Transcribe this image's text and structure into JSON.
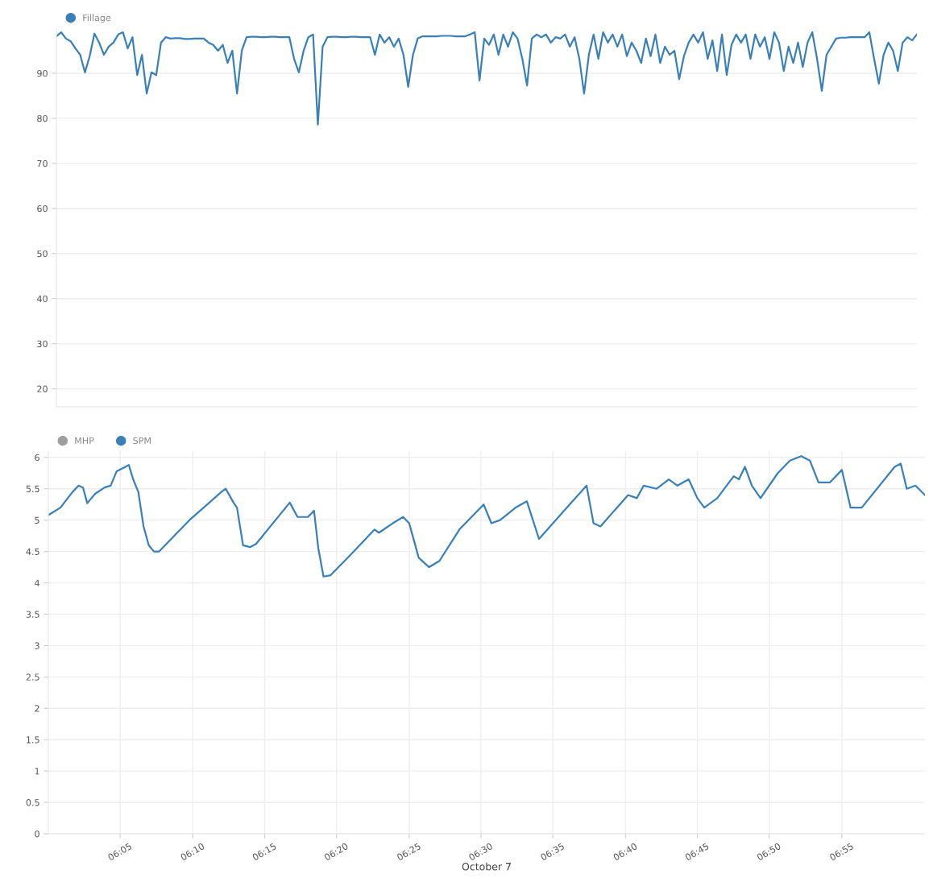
{
  "chart_data": [
    {
      "type": "line",
      "legend": "top left",
      "grid": true,
      "tick_labels": "y",
      "ylim": [
        16,
        100
      ],
      "yticks": [
        20,
        30,
        40,
        50,
        60,
        70,
        80,
        90
      ],
      "categories": [
        null,
        null,
        null,
        null,
        null,
        null,
        null,
        null,
        null,
        null,
        null,
        null,
        null,
        null,
        null,
        null,
        null,
        null,
        null,
        null,
        null,
        null,
        null,
        null,
        null,
        null,
        null,
        null,
        null,
        null,
        null,
        null,
        null,
        null,
        null,
        null,
        null,
        null,
        null,
        null,
        null,
        null,
        null,
        null,
        null,
        null,
        null,
        null,
        null,
        null,
        null,
        null,
        null,
        null,
        null,
        null,
        null,
        null,
        null,
        null,
        null,
        null,
        null,
        null,
        null,
        null,
        null,
        null,
        null,
        null,
        null,
        null,
        null,
        null,
        null,
        null,
        null,
        null,
        null,
        null,
        null,
        null,
        null,
        null,
        null,
        null,
        null,
        null,
        null,
        null,
        null,
        null,
        null,
        null,
        null,
        null,
        null,
        null,
        null,
        null,
        null,
        null,
        null,
        null,
        null,
        null,
        null,
        null,
        null,
        null,
        null,
        null,
        null,
        null,
        null,
        null,
        null,
        null,
        null,
        null,
        null,
        null,
        null,
        null,
        null,
        null,
        null,
        null,
        null,
        null,
        null,
        null,
        null,
        null,
        null,
        null,
        null,
        null,
        null,
        null,
        null,
        null,
        null,
        null,
        null,
        null,
        null,
        null,
        null,
        null,
        null,
        null,
        null,
        null,
        null,
        null,
        null,
        null,
        null,
        null,
        null,
        null,
        null,
        null,
        null,
        null,
        null,
        null,
        null,
        null,
        null,
        null,
        null,
        null,
        null,
        null,
        null,
        null,
        null,
        null,
        null,
        null
      ],
      "series": [
        {
          "name": "Fillage",
          "color": "#3a80b8",
          "values": [
            98.2,
            99.1,
            97.7,
            97.1,
            95.5,
            94.1,
            90.2,
            93.8,
            98.8,
            96.8,
            94.1,
            95.9,
            96.8,
            98.6,
            99.1,
            95.5,
            98.0,
            89.6,
            94.1,
            85.5,
            90.2,
            89.6,
            96.8,
            98.0,
            97.7,
            97.8,
            97.8,
            97.6,
            97.6,
            97.7,
            97.7,
            97.7,
            96.8,
            96.3,
            95.0,
            96.3,
            92.3,
            95.0,
            85.5,
            95.0,
            98.0,
            98.1,
            98.1,
            98.0,
            98.0,
            98.1,
            98.1,
            98.0,
            98.0,
            98.0,
            93.2,
            90.2,
            95.0,
            98.0,
            98.6,
            78.6,
            95.9,
            98.0,
            98.1,
            98.1,
            98.0,
            98.0,
            98.1,
            98.1,
            98.0,
            98.0,
            98.0,
            94.1,
            98.6,
            96.8,
            98.0,
            95.9,
            97.7,
            94.1,
            87.0,
            94.1,
            97.7,
            98.2,
            98.2,
            98.2,
            98.2,
            98.3,
            98.3,
            98.3,
            98.2,
            98.2,
            98.2,
            98.6,
            99.1,
            88.4,
            97.7,
            96.3,
            98.6,
            94.1,
            98.6,
            95.9,
            99.1,
            97.7,
            93.2,
            87.3,
            97.7,
            98.6,
            98.0,
            98.6,
            96.8,
            98.0,
            97.7,
            98.6,
            95.9,
            98.0,
            93.2,
            85.5,
            94.1,
            98.6,
            93.2,
            99.1,
            96.8,
            98.6,
            95.9,
            98.6,
            93.8,
            96.8,
            95.0,
            92.3,
            97.7,
            93.8,
            98.6,
            92.3,
            95.9,
            94.1,
            95.0,
            88.7,
            93.8,
            96.8,
            98.6,
            96.8,
            99.1,
            93.2,
            97.3,
            90.5,
            98.6,
            89.6,
            96.3,
            98.6,
            96.8,
            98.6,
            93.2,
            98.6,
            95.9,
            98.0,
            93.2,
            99.1,
            96.8,
            90.5,
            95.9,
            92.3,
            96.8,
            91.4,
            96.8,
            99.1,
            93.2,
            86.1,
            94.1,
            95.9,
            97.7,
            97.9,
            97.9,
            98.0,
            98.0,
            98.0,
            98.0,
            99.1,
            93.2,
            87.7,
            94.1,
            96.8,
            95.0,
            90.5,
            96.8,
            98.0,
            97.3,
            98.6
          ]
        }
      ]
    },
    {
      "type": "line",
      "legend": "top left",
      "grid": true,
      "xlabel": "October 7",
      "xlim": [
        6.0,
        7.013
      ],
      "ylim": [
        0,
        6.1
      ],
      "yticks": [
        0,
        0.5,
        1,
        1.5,
        2,
        2.5,
        3,
        3.5,
        4,
        4.5,
        5,
        5.5,
        6
      ],
      "xticks": [
        {
          "value": 6.083,
          "label": "06:05"
        },
        {
          "value": 6.167,
          "label": "06:10"
        },
        {
          "value": 6.25,
          "label": "06:15"
        },
        {
          "value": 6.333,
          "label": "06:20"
        },
        {
          "value": 6.417,
          "label": "06:25"
        },
        {
          "value": 6.5,
          "label": "06:30"
        },
        {
          "value": 6.583,
          "label": "06:35"
        },
        {
          "value": 6.667,
          "label": "06:40"
        },
        {
          "value": 6.75,
          "label": "06:45"
        },
        {
          "value": 6.833,
          "label": "06:50"
        },
        {
          "value": 6.917,
          "label": "06:55"
        }
      ],
      "series": [
        {
          "name": "MHP",
          "color": "#9e9e9e"
        },
        {
          "name": "SPM",
          "color": "#3a80b8",
          "x": [
            6.0,
            6.014,
            6.028,
            6.035,
            6.04,
            6.045,
            6.054,
            6.065,
            6.072,
            6.079,
            6.089,
            6.093,
            6.098,
            6.104,
            6.11,
            6.116,
            6.122,
            6.128,
            6.163,
            6.2,
            6.205,
            6.214,
            6.218,
            6.225,
            6.233,
            6.24,
            6.279,
            6.288,
            6.3,
            6.307,
            6.312,
            6.318,
            6.326,
            6.353,
            6.377,
            6.382,
            6.398,
            6.41,
            6.417,
            6.428,
            6.44,
            6.452,
            6.475,
            6.503,
            6.512,
            6.522,
            6.54,
            6.553,
            6.567,
            6.596,
            6.622,
            6.63,
            6.638,
            6.67,
            6.68,
            6.688,
            6.703,
            6.717,
            6.727,
            6.74,
            6.75,
            6.758,
            6.773,
            6.792,
            6.798,
            6.805,
            6.813,
            6.823,
            6.843,
            6.857,
            6.87,
            6.88,
            6.89,
            6.903,
            6.917,
            6.927,
            6.94,
            6.978,
            6.985,
            6.992,
            7.002,
            7.013
          ],
          "values": [
            5.08,
            5.2,
            5.45,
            5.55,
            5.52,
            5.27,
            5.42,
            5.52,
            5.55,
            5.78,
            5.85,
            5.88,
            5.65,
            5.45,
            4.9,
            4.6,
            4.5,
            4.5,
            5.0,
            5.45,
            5.5,
            5.28,
            5.2,
            4.6,
            4.57,
            4.62,
            5.28,
            5.05,
            5.05,
            5.15,
            4.55,
            4.1,
            4.12,
            4.5,
            4.85,
            4.8,
            4.95,
            5.05,
            4.95,
            4.4,
            4.25,
            4.35,
            4.85,
            5.25,
            4.95,
            5.0,
            5.2,
            5.3,
            4.7,
            5.15,
            5.55,
            4.95,
            4.9,
            5.4,
            5.35,
            5.55,
            5.5,
            5.65,
            5.55,
            5.65,
            5.35,
            5.2,
            5.35,
            5.7,
            5.65,
            5.85,
            5.55,
            5.35,
            5.75,
            5.95,
            6.02,
            5.95,
            5.6,
            5.6,
            5.8,
            5.2,
            5.2,
            5.85,
            5.9,
            5.5,
            5.55,
            5.4
          ]
        }
      ]
    }
  ]
}
